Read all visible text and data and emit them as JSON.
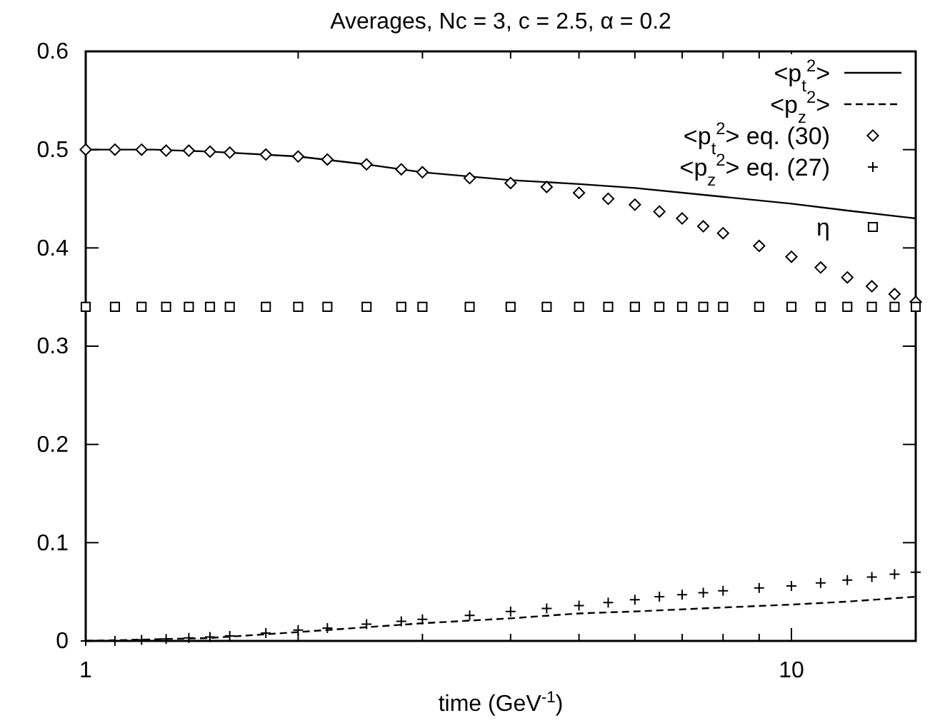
{
  "chart_data": {
    "type": "line",
    "title": "Averages, Nc = 3, c = 2.5, α = 0.2",
    "xlabel": "time (GeV$^{-1}$)",
    "log": "x",
    "xlim": [
      1,
      15
    ],
    "xticks": [
      1,
      {
        "value": 2,
        "label": null
      },
      {
        "value": 3,
        "label": null
      },
      {
        "value": 4,
        "label": null
      },
      {
        "value": 5,
        "label": null
      },
      {
        "value": 6,
        "label": null
      },
      {
        "value": 7,
        "label": null
      },
      {
        "value": 8,
        "label": null
      },
      {
        "value": 9,
        "label": null
      },
      10
    ],
    "ylim": [
      0,
      0.6
    ],
    "yticks": [
      0,
      0.1,
      0.2,
      0.3,
      0.4,
      0.5,
      0.6
    ],
    "grid": false,
    "legend": "top right",
    "series": [
      {
        "name": "<p$_{t}$$^{2}$>",
        "line_style": "solid",
        "marker": "none",
        "color": "#000000",
        "x": [
          1,
          1.25,
          1.5,
          2,
          2.5,
          3,
          4,
          5,
          6,
          8,
          10,
          12,
          15
        ],
        "values": [
          0.5,
          0.5,
          0.498,
          0.493,
          0.485,
          0.477,
          0.469,
          0.465,
          0.461,
          0.452,
          0.445,
          0.438,
          0.43
        ]
      },
      {
        "name": "<p$_{z}$$^{2}$>",
        "line_style": "dashed",
        "marker": "none",
        "color": "#000000",
        "x": [
          1,
          1.5,
          2,
          3,
          4,
          5,
          6,
          8,
          10,
          12,
          15
        ],
        "values": [
          0,
          0.003,
          0.009,
          0.018,
          0.023,
          0.028,
          0.03,
          0.034,
          0.037,
          0.04,
          0.045
        ]
      },
      {
        "name": "<p$_{t}$$^{2}$> eq. (30)",
        "type": "scatter",
        "marker": "diamond",
        "color": "#000000",
        "x": [
          1,
          1.1,
          1.2,
          1.3,
          1.4,
          1.5,
          1.6,
          1.8,
          2,
          2.2,
          2.5,
          2.8,
          3,
          3.5,
          4,
          4.5,
          5,
          5.5,
          6,
          6.5,
          7,
          7.5,
          8,
          9,
          10,
          11,
          12,
          13,
          14,
          15
        ],
        "values": [
          0.5,
          0.5,
          0.5,
          0.499,
          0.499,
          0.498,
          0.497,
          0.495,
          0.493,
          0.49,
          0.485,
          0.48,
          0.477,
          0.471,
          0.466,
          0.462,
          0.456,
          0.45,
          0.444,
          0.437,
          0.43,
          0.422,
          0.415,
          0.402,
          0.391,
          0.38,
          0.37,
          0.361,
          0.353,
          0.345
        ]
      },
      {
        "name": "<p$_{z}$$^{2}$> eq. (27)",
        "type": "scatter",
        "marker": "cross",
        "color": "#000000",
        "x": [
          1,
          1.1,
          1.2,
          1.3,
          1.4,
          1.5,
          1.6,
          1.8,
          2,
          2.2,
          2.5,
          2.8,
          3,
          3.5,
          4,
          4.5,
          5,
          5.5,
          6,
          6.5,
          7,
          7.5,
          8,
          9,
          10,
          11,
          12,
          13,
          14,
          15
        ],
        "values": [
          0,
          0,
          0.001,
          0.002,
          0.003,
          0.004,
          0.005,
          0.008,
          0.011,
          0.013,
          0.017,
          0.02,
          0.022,
          0.026,
          0.03,
          0.033,
          0.036,
          0.039,
          0.042,
          0.045,
          0.047,
          0.049,
          0.051,
          0.054,
          0.056,
          0.059,
          0.062,
          0.065,
          0.068,
          0.07
        ]
      },
      {
        "name": "η",
        "type": "scatter",
        "marker": "square",
        "color": "#000000",
        "x": [
          1,
          1.1,
          1.2,
          1.3,
          1.4,
          1.5,
          1.6,
          1.8,
          2,
          2.2,
          2.5,
          2.8,
          3,
          3.5,
          4,
          4.5,
          5,
          5.5,
          6,
          6.5,
          7,
          7.5,
          8,
          9,
          10,
          11,
          12,
          13,
          14,
          15
        ],
        "values": [
          0.34,
          0.34,
          0.34,
          0.34,
          0.34,
          0.34,
          0.34,
          0.34,
          0.34,
          0.34,
          0.34,
          0.34,
          0.34,
          0.34,
          0.34,
          0.34,
          0.34,
          0.34,
          0.34,
          0.34,
          0.34,
          0.34,
          0.34,
          0.34,
          0.34,
          0.34,
          0.34,
          0.34,
          0.34,
          0.34
        ]
      }
    ]
  }
}
